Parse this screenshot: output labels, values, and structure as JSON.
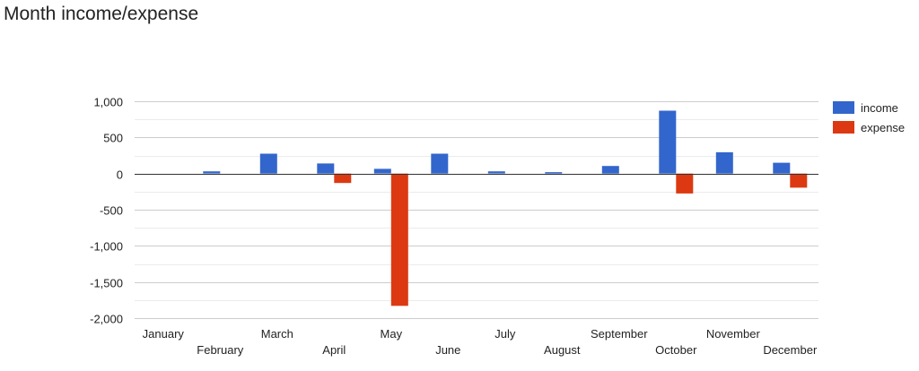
{
  "page": {
    "title": "Month income/expense"
  },
  "colors": {
    "income": "#3366CC",
    "expense": "#DC3912",
    "gridline": "#CCCCCC",
    "minor_gridline": "#EBEBEB",
    "baseline": "#333333"
  },
  "chart_data": {
    "type": "bar",
    "title": "Month income/expense",
    "xlabel": "",
    "ylabel": "",
    "categories": [
      "January",
      "February",
      "March",
      "April",
      "May",
      "June",
      "July",
      "August",
      "September",
      "October",
      "November",
      "December"
    ],
    "series": [
      {
        "name": "income",
        "color": "#3366CC",
        "values": [
          0,
          30,
          275,
          140,
          65,
          275,
          30,
          20,
          105,
          870,
          295,
          150
        ]
      },
      {
        "name": "expense",
        "color": "#DC3912",
        "values": [
          0,
          0,
          0,
          -130,
          -1830,
          0,
          0,
          0,
          0,
          -275,
          0,
          -195
        ]
      }
    ],
    "ylim": [
      -2000,
      1000
    ],
    "yticks": [
      1000,
      500,
      0,
      -500,
      -1000,
      -1500,
      -2000
    ],
    "ytick_labels": [
      "1,000",
      "500",
      "0",
      "-500",
      "-1,000",
      "-1,500",
      "-2,000"
    ],
    "minor_gridlines": true,
    "grid": true,
    "legend": "right"
  }
}
